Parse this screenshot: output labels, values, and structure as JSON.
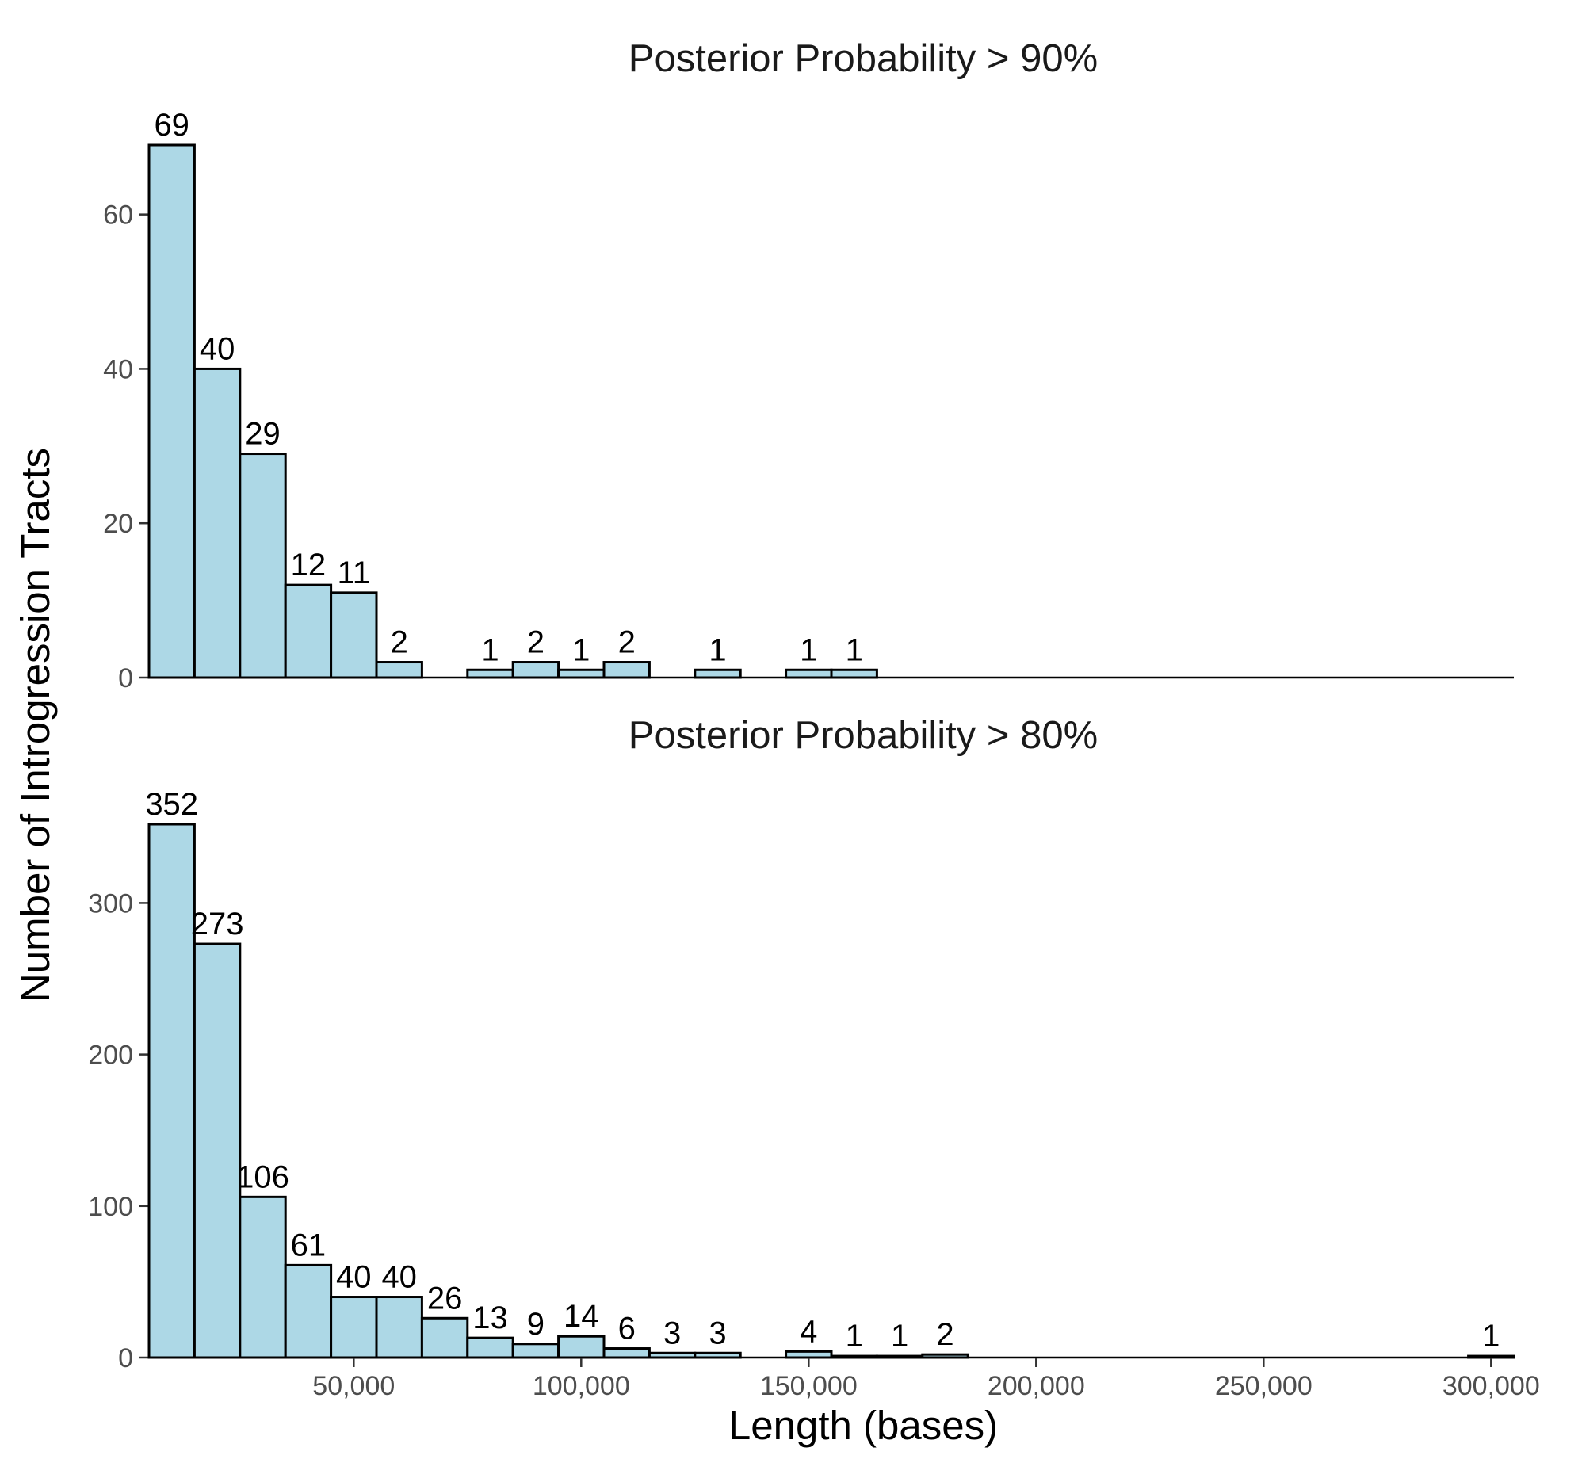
{
  "colors": {
    "bar_fill": "#add8e6",
    "bar_stroke": "#000000"
  },
  "chart_data": {
    "type": "bar",
    "ylabel": "Number of Introgression Tracts",
    "xlabel": "Length (bases)",
    "bin_width": 10000,
    "xlim": [
      5000,
      305000
    ],
    "x_ticks": [
      50000,
      100000,
      150000,
      200000,
      250000,
      300000
    ],
    "x_tick_labels": [
      "50,000",
      "100,000",
      "150,000",
      "200,000",
      "250,000",
      "300,000"
    ],
    "grid": false,
    "panels": [
      {
        "title": "Posterior Probability > 90%",
        "ylim": [
          0,
          69
        ],
        "y_ticks": [
          0,
          20,
          40,
          60
        ],
        "y_tick_labels": [
          "0",
          "20",
          "40",
          "60"
        ],
        "bins": [
          {
            "x": 10000,
            "count": 69,
            "label": "69"
          },
          {
            "x": 20000,
            "count": 40,
            "label": "40"
          },
          {
            "x": 30000,
            "count": 29,
            "label": "29"
          },
          {
            "x": 40000,
            "count": 12,
            "label": "12"
          },
          {
            "x": 50000,
            "count": 11,
            "label": "11"
          },
          {
            "x": 60000,
            "count": 2,
            "label": "2"
          },
          {
            "x": 80000,
            "count": 1,
            "label": "1"
          },
          {
            "x": 90000,
            "count": 2,
            "label": "2"
          },
          {
            "x": 100000,
            "count": 1,
            "label": "1"
          },
          {
            "x": 110000,
            "count": 2,
            "label": "2"
          },
          {
            "x": 130000,
            "count": 1,
            "label": "1"
          },
          {
            "x": 150000,
            "count": 1,
            "label": "1"
          },
          {
            "x": 160000,
            "count": 1,
            "label": "1"
          }
        ]
      },
      {
        "title": "Posterior Probability > 80%",
        "ylim": [
          0,
          352
        ],
        "y_ticks": [
          0,
          100,
          200,
          300
        ],
        "y_tick_labels": [
          "0",
          "100",
          "200",
          "300"
        ],
        "bins": [
          {
            "x": 10000,
            "count": 352,
            "label": "352"
          },
          {
            "x": 20000,
            "count": 273,
            "label": "273"
          },
          {
            "x": 30000,
            "count": 106,
            "label": "106"
          },
          {
            "x": 40000,
            "count": 61,
            "label": "61"
          },
          {
            "x": 50000,
            "count": 40,
            "label": "40"
          },
          {
            "x": 60000,
            "count": 40,
            "label": "40"
          },
          {
            "x": 70000,
            "count": 26,
            "label": "26"
          },
          {
            "x": 80000,
            "count": 13,
            "label": "13"
          },
          {
            "x": 90000,
            "count": 9,
            "label": "9"
          },
          {
            "x": 100000,
            "count": 14,
            "label": "14"
          },
          {
            "x": 110000,
            "count": 6,
            "label": "6"
          },
          {
            "x": 120000,
            "count": 3,
            "label": "3"
          },
          {
            "x": 130000,
            "count": 3,
            "label": "3"
          },
          {
            "x": 150000,
            "count": 4,
            "label": "4"
          },
          {
            "x": 160000,
            "count": 1,
            "label": "1"
          },
          {
            "x": 170000,
            "count": 1,
            "label": "1"
          },
          {
            "x": 180000,
            "count": 2,
            "label": "2"
          },
          {
            "x": 300000,
            "count": 1,
            "label": "1"
          }
        ]
      }
    ]
  }
}
